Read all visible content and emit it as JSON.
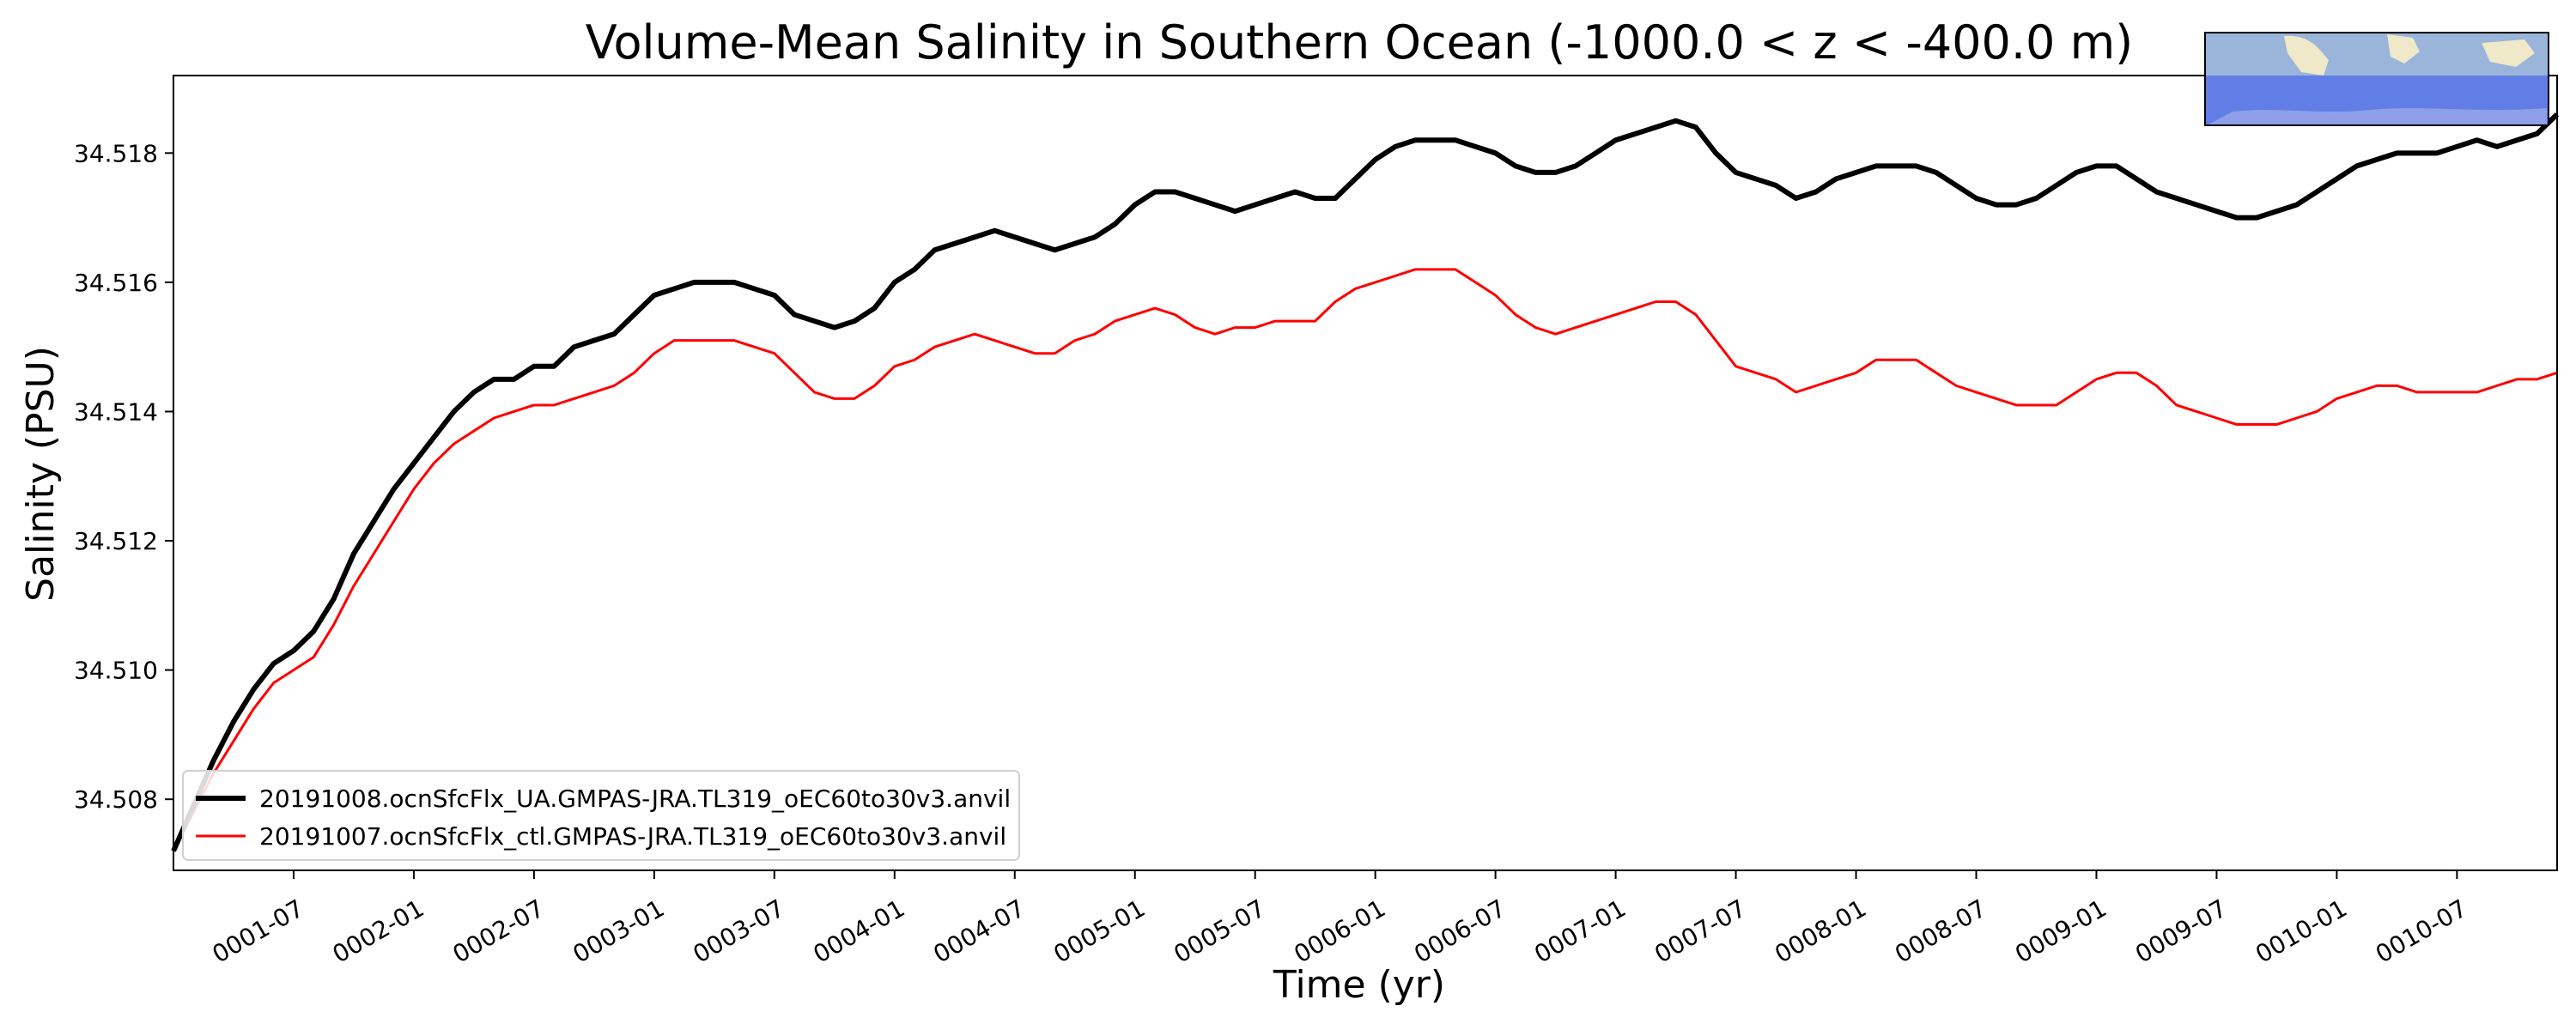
{
  "chart_data": {
    "type": "line",
    "title": "Volume-Mean Salinity in Southern Ocean (-1000.0 < z < -400.0 m)",
    "xlabel": "Time (yr)",
    "ylabel": "Salinity (PSU)",
    "x_unit": "month",
    "xlim": [
      "0001-01",
      "0010-12"
    ],
    "ylim": [
      34.5069,
      34.5192
    ],
    "x_tick_labels": [
      "0001-07",
      "0002-01",
      "0002-07",
      "0003-01",
      "0003-07",
      "0004-01",
      "0004-07",
      "0005-01",
      "0005-07",
      "0006-01",
      "0006-07",
      "0007-01",
      "0007-07",
      "0008-01",
      "0008-07",
      "0009-01",
      "0009-07",
      "0010-01",
      "0010-07"
    ],
    "y_tick_labels": [
      "34.508",
      "34.510",
      "34.512",
      "34.514",
      "34.516",
      "34.518"
    ],
    "grid": false,
    "legend_position": "lower-left",
    "x": [
      "0001-01",
      "0001-02",
      "0001-03",
      "0001-04",
      "0001-05",
      "0001-06",
      "0001-07",
      "0001-08",
      "0001-09",
      "0001-10",
      "0001-11",
      "0001-12",
      "0002-01",
      "0002-02",
      "0002-03",
      "0002-04",
      "0002-05",
      "0002-06",
      "0002-07",
      "0002-08",
      "0002-09",
      "0002-10",
      "0002-11",
      "0002-12",
      "0003-01",
      "0003-02",
      "0003-03",
      "0003-04",
      "0003-05",
      "0003-06",
      "0003-07",
      "0003-08",
      "0003-09",
      "0003-10",
      "0003-11",
      "0003-12",
      "0004-01",
      "0004-02",
      "0004-03",
      "0004-04",
      "0004-05",
      "0004-06",
      "0004-07",
      "0004-08",
      "0004-09",
      "0004-10",
      "0004-11",
      "0004-12",
      "0005-01",
      "0005-02",
      "0005-03",
      "0005-04",
      "0005-05",
      "0005-06",
      "0005-07",
      "0005-08",
      "0005-09",
      "0005-10",
      "0005-11",
      "0005-12",
      "0006-01",
      "0006-02",
      "0006-03",
      "0006-04",
      "0006-05",
      "0006-06",
      "0006-07",
      "0006-08",
      "0006-09",
      "0006-10",
      "0006-11",
      "0006-12",
      "0007-01",
      "0007-02",
      "0007-03",
      "0007-04",
      "0007-05",
      "0007-06",
      "0007-07",
      "0007-08",
      "0007-09",
      "0007-10",
      "0007-11",
      "0007-12",
      "0008-01",
      "0008-02",
      "0008-03",
      "0008-04",
      "0008-05",
      "0008-06",
      "0008-07",
      "0008-08",
      "0008-09",
      "0008-10",
      "0008-11",
      "0008-12",
      "0009-01",
      "0009-02",
      "0009-03",
      "0009-04",
      "0009-05",
      "0009-06",
      "0009-07",
      "0009-08",
      "0009-09",
      "0009-10",
      "0009-11",
      "0009-12",
      "0010-01",
      "0010-02",
      "0010-03",
      "0010-04",
      "0010-05",
      "0010-06",
      "0010-07",
      "0010-08",
      "0010-09",
      "0010-10",
      "0010-11",
      "0010-12"
    ],
    "series": [
      {
        "name": "20191008.ocnSfcFlx_UA.GMPAS-JRA.TL319_oEC60to30v3.anvil",
        "color": "#000000",
        "values": [
          34.5072,
          34.5079,
          34.5086,
          34.5092,
          34.5097,
          34.5101,
          34.5103,
          34.5106,
          34.5111,
          34.5118,
          34.5123,
          34.5128,
          34.5132,
          34.5136,
          34.514,
          34.5143,
          34.5145,
          34.5145,
          34.5147,
          34.5147,
          34.515,
          34.5151,
          34.5152,
          34.5155,
          34.5158,
          34.5159,
          34.516,
          34.516,
          34.516,
          34.5159,
          34.5158,
          34.5155,
          34.5154,
          34.5153,
          34.5154,
          34.5156,
          34.516,
          34.5162,
          34.5165,
          34.5166,
          34.5167,
          34.5168,
          34.5167,
          34.5166,
          34.5165,
          34.5166,
          34.5167,
          34.5169,
          34.5172,
          34.5174,
          34.5174,
          34.5173,
          34.5172,
          34.5171,
          34.5172,
          34.5173,
          34.5174,
          34.5173,
          34.5173,
          34.5176,
          34.5179,
          34.5181,
          34.5182,
          34.5182,
          34.5182,
          34.5181,
          34.518,
          34.5178,
          34.5177,
          34.5177,
          34.5178,
          34.518,
          34.5182,
          34.5183,
          34.5184,
          34.5185,
          34.5184,
          34.518,
          34.5177,
          34.5176,
          34.5175,
          34.5173,
          34.5174,
          34.5176,
          34.5177,
          34.5178,
          34.5178,
          34.5178,
          34.5177,
          34.5175,
          34.5173,
          34.5172,
          34.5172,
          34.5173,
          34.5175,
          34.5177,
          34.5178,
          34.5178,
          34.5176,
          34.5174,
          34.5173,
          34.5172,
          34.5171,
          34.517,
          34.517,
          34.5171,
          34.5172,
          34.5174,
          34.5176,
          34.5178,
          34.5179,
          34.518,
          34.518,
          34.518,
          34.5181,
          34.5182,
          34.5181,
          34.5182,
          34.5183,
          34.5186
        ]
      },
      {
        "name": "20191007.ocnSfcFlx_ctl.GMPAS-JRA.TL319_oEC60to30v3.anvil",
        "color": "#ff0000",
        "values": [
          34.5072,
          34.5078,
          34.5084,
          34.5089,
          34.5094,
          34.5098,
          34.51,
          34.5102,
          34.5107,
          34.5113,
          34.5118,
          34.5123,
          34.5128,
          34.5132,
          34.5135,
          34.5137,
          34.5139,
          34.514,
          34.5141,
          34.5141,
          34.5142,
          34.5143,
          34.5144,
          34.5146,
          34.5149,
          34.5151,
          34.5151,
          34.5151,
          34.5151,
          34.515,
          34.5149,
          34.5146,
          34.5143,
          34.5142,
          34.5142,
          34.5144,
          34.5147,
          34.5148,
          34.515,
          34.5151,
          34.5152,
          34.5151,
          34.515,
          34.5149,
          34.5149,
          34.5151,
          34.5152,
          34.5154,
          34.5155,
          34.5156,
          34.5155,
          34.5153,
          34.5152,
          34.5153,
          34.5153,
          34.5154,
          34.5154,
          34.5154,
          34.5157,
          34.5159,
          34.516,
          34.5161,
          34.5162,
          34.5162,
          34.5162,
          34.516,
          34.5158,
          34.5155,
          34.5153,
          34.5152,
          34.5153,
          34.5154,
          34.5155,
          34.5156,
          34.5157,
          34.5157,
          34.5155,
          34.5151,
          34.5147,
          34.5146,
          34.5145,
          34.5143,
          34.5144,
          34.5145,
          34.5146,
          34.5148,
          34.5148,
          34.5148,
          34.5146,
          34.5144,
          34.5143,
          34.5142,
          34.5141,
          34.5141,
          34.5141,
          34.5143,
          34.5145,
          34.5146,
          34.5146,
          34.5144,
          34.5141,
          34.514,
          34.5139,
          34.5138,
          34.5138,
          34.5138,
          34.5139,
          34.514,
          34.5142,
          34.5143,
          34.5144,
          34.5144,
          34.5143,
          34.5143,
          34.5143,
          34.5143,
          34.5144,
          34.5145,
          34.5145,
          34.5146
        ]
      }
    ]
  }
}
